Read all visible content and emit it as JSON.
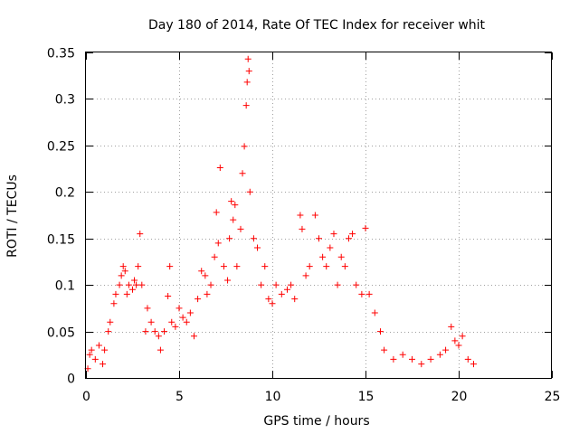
{
  "chart_data": {
    "type": "scatter",
    "title": "Day 180 of 2014, Rate Of TEC Index for receiver whit",
    "xlabel": "GPS time / hours",
    "ylabel": "ROTI / TECUs",
    "xlim": [
      0,
      25
    ],
    "ylim": [
      0,
      0.35
    ],
    "xticks": [
      0,
      5,
      10,
      15,
      20,
      25
    ],
    "xtick_labels": [
      "0",
      "5",
      "10",
      "15",
      "20",
      "25"
    ],
    "yticks": [
      0,
      0.05,
      0.1,
      0.15,
      0.2,
      0.25,
      0.3,
      0.35
    ],
    "ytick_labels": [
      "0",
      "0.05",
      "0.1",
      "0.15",
      "0.2",
      "0.25",
      "0.3",
      "0.35"
    ],
    "grid": true,
    "marker": "plus",
    "color": "#ff0000",
    "series": [
      {
        "name": "ROTI",
        "points": [
          [
            0.1,
            0.01
          ],
          [
            0.2,
            0.025
          ],
          [
            0.3,
            0.03
          ],
          [
            0.5,
            0.02
          ],
          [
            0.7,
            0.035
          ],
          [
            0.9,
            0.015
          ],
          [
            1.0,
            0.03
          ],
          [
            1.2,
            0.05
          ],
          [
            1.3,
            0.06
          ],
          [
            1.5,
            0.08
          ],
          [
            1.6,
            0.09
          ],
          [
            1.8,
            0.1
          ],
          [
            1.9,
            0.11
          ],
          [
            2.0,
            0.12
          ],
          [
            2.1,
            0.115
          ],
          [
            2.2,
            0.09
          ],
          [
            2.3,
            0.1
          ],
          [
            2.5,
            0.095
          ],
          [
            2.6,
            0.105
          ],
          [
            2.7,
            0.1
          ],
          [
            2.8,
            0.12
          ],
          [
            2.9,
            0.155
          ],
          [
            3.0,
            0.1
          ],
          [
            3.2,
            0.05
          ],
          [
            3.3,
            0.075
          ],
          [
            3.5,
            0.06
          ],
          [
            3.7,
            0.05
          ],
          [
            3.9,
            0.045
          ],
          [
            4.0,
            0.03
          ],
          [
            4.2,
            0.05
          ],
          [
            4.4,
            0.088
          ],
          [
            4.5,
            0.12
          ],
          [
            4.6,
            0.06
          ],
          [
            4.8,
            0.055
          ],
          [
            5.0,
            0.075
          ],
          [
            5.2,
            0.065
          ],
          [
            5.4,
            0.06
          ],
          [
            5.6,
            0.07
          ],
          [
            5.8,
            0.045
          ],
          [
            6.0,
            0.085
          ],
          [
            6.2,
            0.115
          ],
          [
            6.4,
            0.11
          ],
          [
            6.5,
            0.09
          ],
          [
            6.7,
            0.1
          ],
          [
            6.9,
            0.13
          ],
          [
            7.0,
            0.178
          ],
          [
            7.1,
            0.145
          ],
          [
            7.2,
            0.226
          ],
          [
            7.4,
            0.12
          ],
          [
            7.6,
            0.105
          ],
          [
            7.7,
            0.15
          ],
          [
            7.8,
            0.19
          ],
          [
            7.9,
            0.17
          ],
          [
            8.0,
            0.186
          ],
          [
            8.1,
            0.12
          ],
          [
            8.3,
            0.16
          ],
          [
            8.4,
            0.22
          ],
          [
            8.5,
            0.249
          ],
          [
            8.6,
            0.293
          ],
          [
            8.65,
            0.318
          ],
          [
            8.7,
            0.343
          ],
          [
            8.75,
            0.33
          ],
          [
            8.8,
            0.2
          ],
          [
            9.0,
            0.15
          ],
          [
            9.2,
            0.14
          ],
          [
            9.4,
            0.1
          ],
          [
            9.6,
            0.12
          ],
          [
            9.8,
            0.085
          ],
          [
            10.0,
            0.08
          ],
          [
            10.2,
            0.1
          ],
          [
            10.5,
            0.09
          ],
          [
            10.8,
            0.095
          ],
          [
            11.0,
            0.1
          ],
          [
            11.2,
            0.085
          ],
          [
            11.5,
            0.175
          ],
          [
            11.6,
            0.16
          ],
          [
            11.8,
            0.11
          ],
          [
            12.0,
            0.12
          ],
          [
            12.3,
            0.175
          ],
          [
            12.5,
            0.15
          ],
          [
            12.7,
            0.13
          ],
          [
            12.9,
            0.12
          ],
          [
            13.1,
            0.14
          ],
          [
            13.3,
            0.155
          ],
          [
            13.5,
            0.1
          ],
          [
            13.7,
            0.13
          ],
          [
            13.9,
            0.12
          ],
          [
            14.1,
            0.15
          ],
          [
            14.3,
            0.155
          ],
          [
            14.5,
            0.1
          ],
          [
            14.8,
            0.09
          ],
          [
            15.0,
            0.161
          ],
          [
            15.2,
            0.09
          ],
          [
            15.5,
            0.07
          ],
          [
            15.8,
            0.05
          ],
          [
            16.0,
            0.03
          ],
          [
            16.5,
            0.02
          ],
          [
            17.0,
            0.025
          ],
          [
            17.5,
            0.02
          ],
          [
            18.0,
            0.015
          ],
          [
            18.5,
            0.02
          ],
          [
            19.0,
            0.025
          ],
          [
            19.3,
            0.03
          ],
          [
            19.6,
            0.055
          ],
          [
            19.8,
            0.04
          ],
          [
            20.0,
            0.035
          ],
          [
            20.2,
            0.045
          ],
          [
            20.5,
            0.02
          ],
          [
            20.8,
            0.015
          ]
        ]
      }
    ]
  }
}
